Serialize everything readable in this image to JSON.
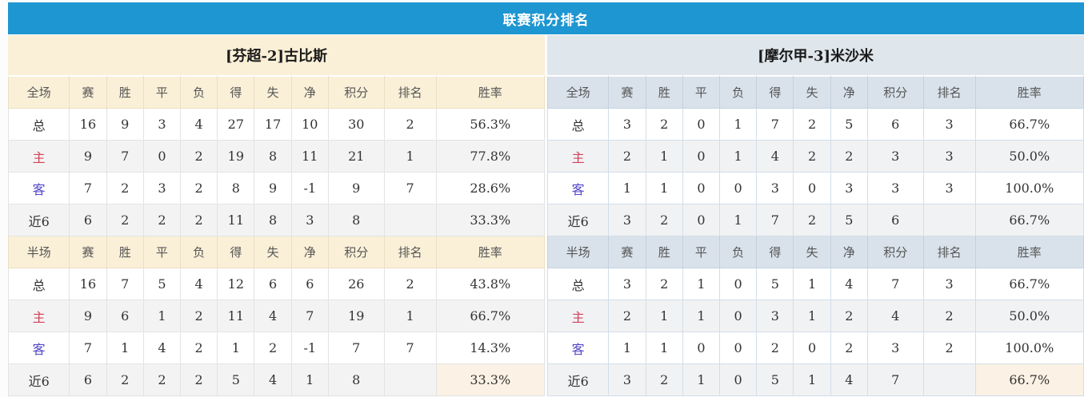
{
  "title": "联赛积分排名",
  "scope_full": "全场",
  "scope_half": "半场",
  "columns": [
    "赛",
    "胜",
    "平",
    "负",
    "得",
    "失",
    "净",
    "积分",
    "排名",
    "胜率"
  ],
  "colors": {
    "title_bar_blue": "#1E96D2",
    "left_theme_cream": "#FAF0D7",
    "right_theme_bluegray": "#DFE6EC",
    "right_header_bluegray": "#D9E2EB",
    "points_red": "#E8402F",
    "rank_blue": "#3F72B8",
    "home_label_red": "#D4405A",
    "away_label_blue": "#5145C8",
    "alt_row_gray": "#F3F3F3",
    "rate_highlight_cream": "#FBF1E4"
  },
  "panels": [
    {
      "team": "[芬超-2]古比斯",
      "theme": "cream",
      "full": {
        "rows": [
          {
            "label": "总",
            "label_class": "dark",
            "cells": [
              "16",
              "9",
              "3",
              "4",
              "27",
              "17",
              "10",
              "30",
              "2",
              "56.3%"
            ]
          },
          {
            "label": "主",
            "label_class": "red",
            "cells": [
              "9",
              "7",
              "0",
              "2",
              "19",
              "8",
              "11",
              "21",
              "1",
              "77.8%"
            ]
          },
          {
            "label": "客",
            "label_class": "blue",
            "cells": [
              "7",
              "2",
              "3",
              "2",
              "8",
              "9",
              "-1",
              "9",
              "7",
              "28.6%"
            ]
          },
          {
            "label": "近6",
            "label_class": "dark",
            "cells": [
              "6",
              "2",
              "2",
              "2",
              "11",
              "8",
              "3",
              "8",
              "",
              "33.3%"
            ]
          }
        ]
      },
      "half": {
        "rows": [
          {
            "label": "总",
            "label_class": "dark",
            "cells": [
              "16",
              "7",
              "5",
              "4",
              "12",
              "6",
              "6",
              "26",
              "2",
              "43.8%"
            ]
          },
          {
            "label": "主",
            "label_class": "red",
            "cells": [
              "9",
              "6",
              "1",
              "2",
              "11",
              "4",
              "7",
              "19",
              "1",
              "66.7%"
            ]
          },
          {
            "label": "客",
            "label_class": "blue",
            "cells": [
              "7",
              "1",
              "4",
              "2",
              "1",
              "2",
              "-1",
              "7",
              "7",
              "14.3%"
            ]
          },
          {
            "label": "近6",
            "label_class": "dark",
            "cells": [
              "6",
              "2",
              "2",
              "2",
              "5",
              "4",
              "1",
              "8",
              "",
              "33.3%"
            ],
            "rate_highlight": true
          }
        ]
      }
    },
    {
      "team": "[摩尔甲-3]米沙米",
      "theme": "bluegray",
      "full": {
        "rows": [
          {
            "label": "总",
            "label_class": "dark",
            "cells": [
              "3",
              "2",
              "0",
              "1",
              "7",
              "2",
              "5",
              "6",
              "3",
              "66.7%"
            ]
          },
          {
            "label": "主",
            "label_class": "red",
            "cells": [
              "2",
              "1",
              "0",
              "1",
              "4",
              "2",
              "2",
              "3",
              "3",
              "50.0%"
            ]
          },
          {
            "label": "客",
            "label_class": "blue",
            "cells": [
              "1",
              "1",
              "0",
              "0",
              "3",
              "0",
              "3",
              "3",
              "3",
              "100.0%"
            ]
          },
          {
            "label": "近6",
            "label_class": "dark",
            "cells": [
              "3",
              "2",
              "0",
              "1",
              "7",
              "2",
              "5",
              "6",
              "",
              "66.7%"
            ]
          }
        ]
      },
      "half": {
        "rows": [
          {
            "label": "总",
            "label_class": "dark",
            "cells": [
              "3",
              "2",
              "1",
              "0",
              "5",
              "1",
              "4",
              "7",
              "3",
              "66.7%"
            ]
          },
          {
            "label": "主",
            "label_class": "red",
            "cells": [
              "2",
              "1",
              "1",
              "0",
              "3",
              "1",
              "2",
              "4",
              "2",
              "50.0%"
            ]
          },
          {
            "label": "客",
            "label_class": "blue",
            "cells": [
              "1",
              "1",
              "0",
              "0",
              "2",
              "0",
              "2",
              "3",
              "2",
              "100.0%"
            ]
          },
          {
            "label": "近6",
            "label_class": "dark",
            "cells": [
              "3",
              "2",
              "1",
              "0",
              "5",
              "1",
              "4",
              "7",
              "",
              "66.7%"
            ],
            "rate_highlight": true
          }
        ]
      }
    }
  ]
}
